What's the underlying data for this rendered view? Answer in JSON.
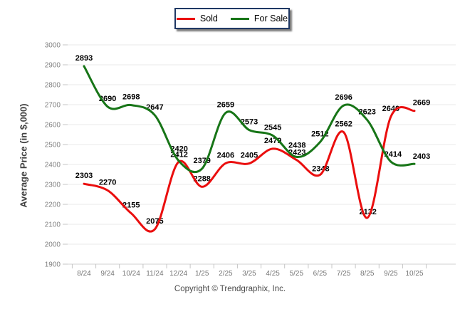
{
  "legend": {
    "items": [
      {
        "label": "Sold",
        "color": "#ea0e0e"
      },
      {
        "label": "For Sale",
        "color": "#177517"
      }
    ],
    "border_color": "#1f3864"
  },
  "y_axis_title": "Average Price (in $,000)",
  "footer": {
    "copyright": "Copyright © Trendgraphix, Inc."
  },
  "chart_data": {
    "type": "line",
    "smooth": true,
    "grid": true,
    "legend_position": "top-center",
    "title": "",
    "xlabel": "",
    "ylabel": "Average Price (in $,000)",
    "ylim": [
      1900,
      3000
    ],
    "ytick_step": 100,
    "categories": [
      "8/24",
      "9/24",
      "10/24",
      "11/24",
      "12/24",
      "1/25",
      "2/25",
      "3/25",
      "4/25",
      "5/25",
      "6/25",
      "7/25",
      "8/25",
      "9/25",
      "10/25"
    ],
    "series": [
      {
        "name": "Sold",
        "color": "#ea0e0e",
        "values": [
          2303,
          2270,
          2155,
          2075,
          2412,
          2288,
          2406,
          2405,
          2479,
          2423,
          2348,
          2562,
          2132,
          2640,
          2669
        ]
      },
      {
        "name": "For Sale",
        "color": "#177517",
        "values": [
          2893,
          2690,
          2698,
          2647,
          2420,
          2379,
          2659,
          2573,
          2545,
          2438,
          2512,
          2696,
          2623,
          2414,
          2403
        ]
      }
    ]
  }
}
